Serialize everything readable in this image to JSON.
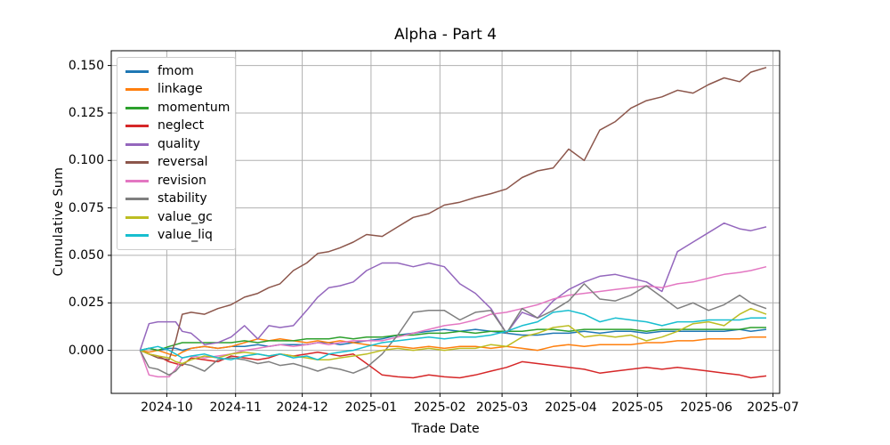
{
  "chart_data": {
    "type": "line",
    "title": "Alpha - Part 4",
    "xlabel": "Trade Date",
    "ylabel": "Cumulative Sum",
    "grid": true,
    "legend_position": "upper left",
    "line_width": 1.5,
    "xlim": [
      "2024-09-06",
      "2025-07-04"
    ],
    "ylim": [
      -0.0227,
      0.1578
    ],
    "yticks": [
      0.0,
      0.025,
      0.05,
      0.075,
      0.1,
      0.125,
      0.15
    ],
    "ytick_labels": [
      "0.000",
      "0.025",
      "0.050",
      "0.075",
      "0.100",
      "0.125",
      "0.150"
    ],
    "xticks": [
      "2024-10-01",
      "2024-11-01",
      "2024-12-01",
      "2025-01-01",
      "2025-02-01",
      "2025-03-01",
      "2025-04-01",
      "2025-05-01",
      "2025-06-01",
      "2025-07-01"
    ],
    "xtick_labels": [
      "2024-10",
      "2024-11",
      "2024-12",
      "2025-01",
      "2025-02",
      "2025-03",
      "2025-04",
      "2025-05",
      "2025-06",
      "2025-07"
    ],
    "x": [
      "2024-09-19",
      "2024-09-23",
      "2024-09-27",
      "2024-10-02",
      "2024-10-05",
      "2024-10-08",
      "2024-10-12",
      "2024-10-18",
      "2024-10-24",
      "2024-10-30",
      "2024-11-05",
      "2024-11-11",
      "2024-11-16",
      "2024-11-21",
      "2024-11-27",
      "2024-12-03",
      "2024-12-08",
      "2024-12-13",
      "2024-12-18",
      "2024-12-24",
      "2024-12-30",
      "2025-01-06",
      "2025-01-13",
      "2025-01-20",
      "2025-01-27",
      "2025-02-03",
      "2025-02-10",
      "2025-02-17",
      "2025-02-24",
      "2025-03-03",
      "2025-03-10",
      "2025-03-17",
      "2025-03-24",
      "2025-03-31",
      "2025-04-07",
      "2025-04-14",
      "2025-04-21",
      "2025-04-28",
      "2025-05-05",
      "2025-05-12",
      "2025-05-19",
      "2025-05-26",
      "2025-06-02",
      "2025-06-09",
      "2025-06-16",
      "2025-06-21",
      "2025-06-28"
    ],
    "series": [
      {
        "name": "fmom",
        "color": "#1f77b4",
        "values": [
          0.0,
          0.001,
          0.0,
          0.001,
          0.001,
          0.0,
          0.001,
          0.002,
          0.001,
          0.002,
          0.002,
          0.003,
          0.002,
          0.003,
          0.003,
          0.003,
          0.004,
          0.004,
          0.003,
          0.004,
          0.005,
          0.006,
          0.008,
          0.009,
          0.01,
          0.011,
          0.01,
          0.011,
          0.01,
          0.009,
          0.008,
          0.008,
          0.009,
          0.009,
          0.01,
          0.009,
          0.01,
          0.01,
          0.009,
          0.01,
          0.01,
          0.01,
          0.01,
          0.01,
          0.011,
          0.01,
          0.011
        ]
      },
      {
        "name": "linkage",
        "color": "#ff7f0e",
        "values": [
          0.0,
          -0.001,
          0.0,
          -0.002,
          -0.003,
          -0.001,
          0.001,
          0.002,
          0.001,
          0.002,
          0.004,
          0.006,
          0.005,
          0.006,
          0.005,
          0.004,
          0.005,
          0.004,
          0.005,
          0.004,
          0.003,
          0.002,
          0.002,
          0.001,
          0.002,
          0.001,
          0.002,
          0.002,
          0.001,
          0.002,
          0.001,
          0.0,
          0.002,
          0.003,
          0.002,
          0.003,
          0.003,
          0.003,
          0.004,
          0.004,
          0.005,
          0.005,
          0.006,
          0.006,
          0.006,
          0.007,
          0.007
        ]
      },
      {
        "name": "momentum",
        "color": "#2ca02c",
        "values": [
          0.0,
          0.001,
          0.0,
          0.002,
          0.003,
          0.004,
          0.004,
          0.004,
          0.004,
          0.004,
          0.005,
          0.004,
          0.005,
          0.005,
          0.005,
          0.006,
          0.006,
          0.006,
          0.007,
          0.006,
          0.007,
          0.007,
          0.008,
          0.008,
          0.009,
          0.009,
          0.01,
          0.009,
          0.01,
          0.01,
          0.01,
          0.011,
          0.011,
          0.01,
          0.011,
          0.011,
          0.011,
          0.011,
          0.01,
          0.011,
          0.011,
          0.011,
          0.011,
          0.011,
          0.011,
          0.012,
          0.012
        ]
      },
      {
        "name": "neglect",
        "color": "#d62728",
        "values": [
          0.0,
          -0.002,
          -0.003,
          -0.006,
          -0.007,
          -0.008,
          -0.004,
          -0.005,
          -0.006,
          -0.003,
          -0.004,
          -0.005,
          -0.004,
          -0.002,
          -0.003,
          -0.002,
          -0.001,
          -0.002,
          -0.003,
          -0.002,
          -0.007,
          -0.013,
          -0.014,
          -0.0145,
          -0.013,
          -0.014,
          -0.0145,
          -0.013,
          -0.011,
          -0.009,
          -0.006,
          -0.007,
          -0.008,
          -0.009,
          -0.01,
          -0.012,
          -0.011,
          -0.01,
          -0.009,
          -0.01,
          -0.009,
          -0.01,
          -0.011,
          -0.012,
          -0.013,
          -0.0145,
          -0.0135
        ]
      },
      {
        "name": "quality",
        "color": "#9467bd",
        "values": [
          0.0,
          0.014,
          0.015,
          0.015,
          0.015,
          0.01,
          0.009,
          0.003,
          0.004,
          0.007,
          0.013,
          0.006,
          0.013,
          0.012,
          0.013,
          0.021,
          0.028,
          0.033,
          0.034,
          0.036,
          0.042,
          0.046,
          0.046,
          0.044,
          0.046,
          0.044,
          0.035,
          0.03,
          0.022,
          0.009,
          0.02,
          0.017,
          0.026,
          0.032,
          0.036,
          0.039,
          0.04,
          0.038,
          0.036,
          0.031,
          0.052,
          0.057,
          0.062,
          0.067,
          0.064,
          0.063,
          0.065
        ]
      },
      {
        "name": "reversal",
        "color": "#8c564b",
        "values": [
          0.0,
          -0.002,
          -0.004,
          -0.005,
          0.005,
          0.019,
          0.02,
          0.019,
          0.022,
          0.024,
          0.028,
          0.03,
          0.033,
          0.035,
          0.042,
          0.046,
          0.051,
          0.052,
          0.054,
          0.057,
          0.061,
          0.06,
          0.065,
          0.07,
          0.072,
          0.0765,
          0.078,
          0.0805,
          0.0825,
          0.085,
          0.091,
          0.0945,
          0.096,
          0.106,
          0.1,
          0.116,
          0.1205,
          0.1275,
          0.1315,
          0.1335,
          0.137,
          0.1355,
          0.14,
          0.1435,
          0.1415,
          0.1465,
          0.149
        ]
      },
      {
        "name": "revision",
        "color": "#e377c2",
        "values": [
          0.0,
          -0.013,
          -0.014,
          -0.014,
          -0.01,
          -0.004,
          -0.003,
          -0.004,
          -0.003,
          -0.002,
          0.0,
          0.001,
          0.002,
          0.003,
          0.002,
          0.003,
          0.004,
          0.003,
          0.004,
          0.005,
          0.005,
          0.005,
          0.007,
          0.009,
          0.011,
          0.013,
          0.014,
          0.016,
          0.019,
          0.02,
          0.022,
          0.024,
          0.027,
          0.029,
          0.03,
          0.031,
          0.032,
          0.033,
          0.034,
          0.033,
          0.035,
          0.036,
          0.038,
          0.04,
          0.041,
          0.042,
          0.044
        ]
      },
      {
        "name": "stability",
        "color": "#7f7f7f",
        "values": [
          0.0,
          -0.009,
          -0.01,
          -0.013,
          -0.011,
          -0.007,
          -0.008,
          -0.011,
          -0.005,
          -0.004,
          -0.005,
          -0.007,
          -0.006,
          -0.008,
          -0.007,
          -0.009,
          -0.011,
          -0.009,
          -0.01,
          -0.012,
          -0.009,
          -0.002,
          0.008,
          0.02,
          0.021,
          0.021,
          0.016,
          0.02,
          0.021,
          0.009,
          0.022,
          0.017,
          0.021,
          0.026,
          0.035,
          0.027,
          0.026,
          0.029,
          0.034,
          0.028,
          0.022,
          0.025,
          0.021,
          0.024,
          0.029,
          0.025,
          0.022
        ]
      },
      {
        "name": "value_gc",
        "color": "#bcbd22",
        "values": [
          0.0,
          -0.002,
          -0.003,
          -0.004,
          -0.006,
          -0.007,
          -0.005,
          -0.003,
          -0.004,
          -0.002,
          -0.001,
          -0.002,
          -0.003,
          -0.002,
          -0.003,
          -0.004,
          -0.005,
          -0.005,
          -0.004,
          -0.003,
          -0.002,
          0.0,
          0.001,
          0.0,
          0.001,
          0.0,
          0.001,
          0.001,
          0.003,
          0.002,
          0.007,
          0.009,
          0.012,
          0.013,
          0.007,
          0.008,
          0.007,
          0.008,
          0.005,
          0.007,
          0.01,
          0.014,
          0.015,
          0.013,
          0.019,
          0.022,
          0.019
        ]
      },
      {
        "name": "value_liq",
        "color": "#17becf",
        "values": [
          0.0,
          0.001,
          0.002,
          0.0,
          -0.002,
          -0.004,
          -0.003,
          -0.002,
          -0.004,
          -0.005,
          -0.003,
          -0.002,
          -0.003,
          -0.002,
          -0.004,
          -0.003,
          -0.005,
          -0.002,
          -0.001,
          0.0,
          0.002,
          0.004,
          0.005,
          0.006,
          0.007,
          0.006,
          0.007,
          0.007,
          0.008,
          0.01,
          0.013,
          0.015,
          0.02,
          0.021,
          0.019,
          0.015,
          0.017,
          0.016,
          0.015,
          0.013,
          0.015,
          0.015,
          0.016,
          0.016,
          0.016,
          0.017,
          0.017
        ]
      }
    ]
  }
}
